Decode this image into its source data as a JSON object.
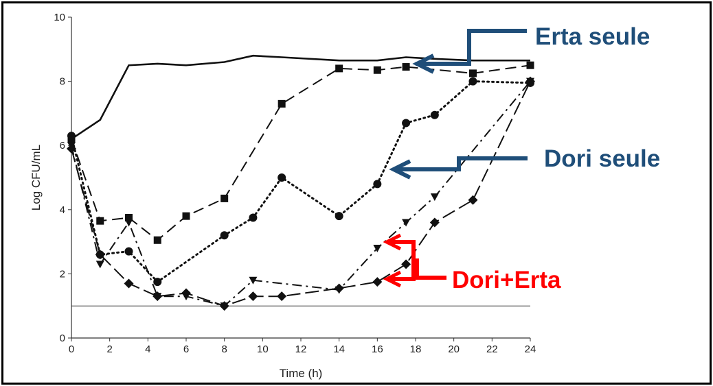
{
  "chart_data": {
    "type": "line",
    "xlabel": "Time (h)",
    "ylabel": "Log CFU/mL",
    "xlim": [
      0,
      24
    ],
    "ylim": [
      0,
      10
    ],
    "xticks": [
      "0",
      "2",
      "4",
      "6",
      "8",
      "10",
      "12",
      "14",
      "16",
      "18",
      "20",
      "22",
      "24"
    ],
    "yticks": [
      "0",
      "2",
      "4",
      "6",
      "8",
      "10"
    ],
    "detection_limit": 1,
    "grid": false,
    "series": [
      {
        "key": "control",
        "style": "solid",
        "marker": "none",
        "x": [
          0,
          1.5,
          3,
          4.5,
          6,
          8,
          9.5,
          11,
          14,
          16,
          17.5,
          19,
          21,
          24
        ],
        "y": [
          6.2,
          6.8,
          8.5,
          8.55,
          8.5,
          8.6,
          8.8,
          8.75,
          8.65,
          8.65,
          8.75,
          8.7,
          8.65,
          8.65
        ]
      },
      {
        "key": "erta",
        "style": "dash",
        "marker": "square",
        "x": [
          0,
          1.5,
          3,
          4.5,
          6,
          8,
          11,
          14,
          16,
          17.5,
          21,
          24
        ],
        "y": [
          6.2,
          3.65,
          3.75,
          3.05,
          3.8,
          4.35,
          7.3,
          8.4,
          8.35,
          8.45,
          8.25,
          8.5
        ]
      },
      {
        "key": "dori",
        "style": "dot",
        "marker": "circle",
        "x": [
          0,
          1.5,
          3,
          4.5,
          8,
          9.5,
          11,
          14,
          16,
          17.5,
          19,
          21,
          24
        ],
        "y": [
          6.3,
          2.6,
          2.7,
          1.75,
          3.2,
          3.75,
          5.0,
          3.8,
          4.8,
          6.7,
          6.95,
          8.0,
          7.95
        ]
      },
      {
        "key": "combo1",
        "style": "dashdot",
        "marker": "triangle",
        "x": [
          0,
          1.5,
          3,
          4.5,
          6,
          8,
          9.5,
          14,
          16,
          17.5,
          19,
          24
        ],
        "y": [
          6.0,
          2.3,
          3.6,
          1.3,
          1.3,
          1.0,
          1.8,
          1.5,
          2.8,
          3.6,
          4.4,
          8.0
        ]
      },
      {
        "key": "combo2",
        "style": "longdash",
        "marker": "diamond",
        "x": [
          0,
          1.5,
          3,
          4.5,
          6,
          8,
          9.5,
          11,
          14,
          16,
          17.5,
          19,
          21,
          24
        ],
        "y": [
          5.9,
          2.6,
          1.7,
          1.3,
          1.4,
          1.0,
          1.3,
          1.3,
          1.55,
          1.75,
          2.3,
          3.6,
          4.3,
          8.0
        ]
      }
    ],
    "annotations": [
      {
        "text": "Erta seule",
        "color": "#1f4e79"
      },
      {
        "text": "Dori seule",
        "color": "#1f4e79"
      },
      {
        "text": "Dori+Erta",
        "color": "#ff0000"
      }
    ]
  }
}
